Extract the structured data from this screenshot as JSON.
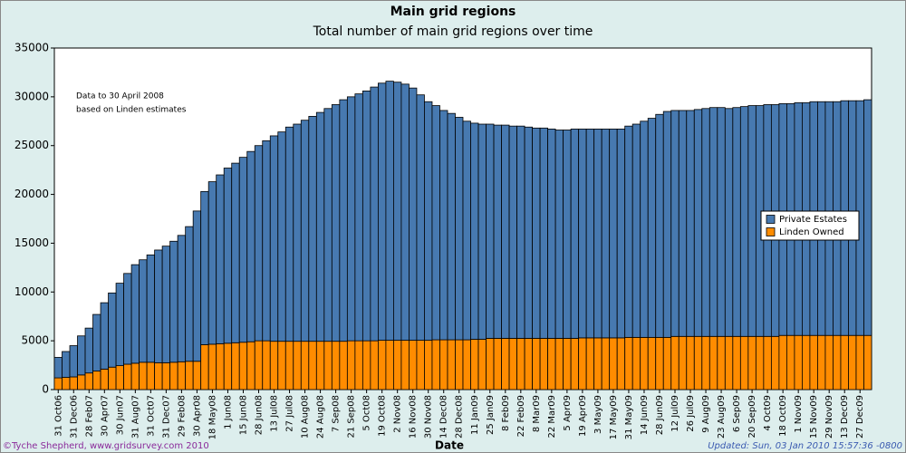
{
  "chart_data": {
    "type": "stacked_bar",
    "title": "Main grid regions",
    "subtitle": "Total number of main grid regions over time",
    "x_label": "Date",
    "annotation": [
      "Data to 30 April 2008",
      "based on Linden estimates"
    ],
    "credit": "©Tyche Shepherd, www.gridsurvey.com 2010",
    "updated": "Updated: Sun, 03 Jan 2010 15:57:36 -0800",
    "legend_position": "right",
    "categories": [
      "31 Oct06",
      null,
      "31 Dec06",
      null,
      "28 Feb07",
      null,
      "30 Apr07",
      null,
      "30 Jun07",
      null,
      "31 Aug07",
      null,
      "31 Oct07",
      null,
      "31 Dec07",
      null,
      "29 Feb08",
      null,
      "30 Apr08",
      null,
      "18 May08",
      null,
      "1 Jun08",
      null,
      "15 Jun08",
      null,
      "28 Jun08",
      null,
      "13 Jul08",
      null,
      "27 Jul08",
      null,
      "10 Aug08",
      null,
      "24 Aug08",
      null,
      "7 Sep08",
      null,
      "21 Sep08",
      null,
      "5 Oct08",
      null,
      "19 Oct08",
      null,
      "2 Nov08",
      null,
      "16 Nov08",
      null,
      "30 Nov08",
      null,
      "14 Dec08",
      null,
      "28 Dec08",
      null,
      "11 Jan09",
      null,
      "25 Jan09",
      null,
      "8 Feb09",
      null,
      "22 Feb09",
      null,
      "8 Mar09",
      null,
      "22 Mar09",
      null,
      "5 Apr09",
      null,
      "19 Apr09",
      null,
      "3 May09",
      null,
      "17 May09",
      null,
      "31 May09",
      null,
      "14 Jun09",
      null,
      "28 Jun09",
      null,
      "12 Jul09",
      null,
      "26 Jul09",
      null,
      "9 Aug09",
      null,
      "23 Aug09",
      null,
      "6 Sep09",
      null,
      "20 Sep09",
      null,
      "4 Oct09",
      null,
      "18 Oct09",
      null,
      "1 Nov09",
      null,
      "15 Nov09",
      null,
      "29 Nov09",
      null,
      "13 Dec09",
      null,
      "27 Dec09",
      null
    ],
    "series": [
      {
        "name": "Linden Owned",
        "color": "#ff8c00",
        "values": [
          1200,
          1250,
          1300,
          1500,
          1700,
          1900,
          2100,
          2300,
          2450,
          2600,
          2700,
          2800,
          2800,
          2750,
          2750,
          2800,
          2850,
          2900,
          2900,
          4600,
          4650,
          4700,
          4750,
          4800,
          4850,
          4900,
          5000,
          5000,
          4950,
          4950,
          4950,
          4950,
          4950,
          4950,
          4950,
          4950,
          4950,
          4950,
          5000,
          5000,
          5000,
          5000,
          5050,
          5050,
          5050,
          5050,
          5050,
          5050,
          5050,
          5100,
          5100,
          5100,
          5100,
          5100,
          5150,
          5150,
          5250,
          5250,
          5250,
          5250,
          5250,
          5250,
          5250,
          5250,
          5250,
          5250,
          5250,
          5250,
          5300,
          5300,
          5300,
          5300,
          5300,
          5300,
          5350,
          5350,
          5350,
          5350,
          5350,
          5350,
          5450,
          5450,
          5450,
          5450,
          5450,
          5450,
          5450,
          5450,
          5450,
          5450,
          5450,
          5450,
          5450,
          5450,
          5550,
          5550,
          5550,
          5550,
          5550,
          5550,
          5550,
          5550,
          5550,
          5550,
          5550,
          5550
        ]
      },
      {
        "name": "Private Estates",
        "color": "#4779b0",
        "values": [
          2100,
          2650,
          3200,
          4000,
          4600,
          5800,
          6800,
          7600,
          8450,
          9300,
          10100,
          10500,
          11000,
          11550,
          11950,
          12400,
          12950,
          13800,
          15400,
          15700,
          16650,
          17300,
          17950,
          18400,
          18950,
          19500,
          20000,
          20500,
          21050,
          21450,
          21950,
          22250,
          22650,
          23050,
          23450,
          23850,
          24250,
          24750,
          25000,
          25300,
          25600,
          26000,
          26350,
          26550,
          26450,
          26250,
          25850,
          25150,
          24450,
          24000,
          23500,
          23200,
          22800,
          22400,
          22150,
          22050,
          21950,
          21850,
          21850,
          21750,
          21750,
          21650,
          21550,
          21550,
          21450,
          21350,
          21350,
          21450,
          21400,
          21400,
          21400,
          21400,
          21400,
          21400,
          21650,
          21850,
          22150,
          22450,
          22850,
          23150,
          23150,
          23150,
          23150,
          23250,
          23350,
          23450,
          23450,
          23350,
          23450,
          23550,
          23650,
          23650,
          23750,
          23750,
          23750,
          23750,
          23850,
          23850,
          23950,
          23950,
          23950,
          23950,
          24050,
          24050,
          24050,
          24150
        ]
      }
    ],
    "ylim": [
      0,
      35000
    ],
    "yticks": [
      0,
      5000,
      10000,
      15000,
      20000,
      25000,
      30000,
      35000
    ]
  }
}
